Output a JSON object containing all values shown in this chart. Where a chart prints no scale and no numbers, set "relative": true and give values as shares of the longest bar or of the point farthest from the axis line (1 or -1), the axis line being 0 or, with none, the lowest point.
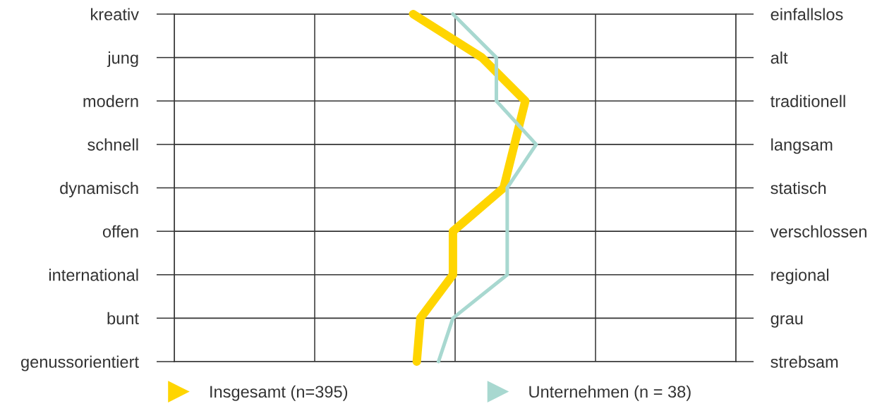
{
  "chart_data": {
    "type": "line",
    "orientation": "horizontal",
    "relative": true,
    "categories": [
      "kreativ",
      "jung",
      "modern",
      "schnell",
      "dynamisch",
      "offen",
      "international",
      "bunt",
      "genussorientiert"
    ],
    "y2_categories": [
      "einfallslos",
      "alt",
      "traditionell",
      "langsam",
      "statisch",
      "verschlossen",
      "regional",
      "grau",
      "strebsam"
    ],
    "series": [
      {
        "name": "Insgesamt (n=395)",
        "color": "#ffd500",
        "values": [
          0.66,
          0.85,
          0.97,
          0.94,
          0.91,
          0.77,
          0.77,
          0.68,
          0.67
        ]
      },
      {
        "name": "Unternehmen (n = 38)",
        "color": "#a8d8d0",
        "values": [
          0.77,
          0.89,
          0.89,
          1.0,
          0.92,
          0.92,
          0.92,
          0.77,
          0.73
        ]
      }
    ],
    "grid": true,
    "legend": "bottom",
    "tick_labels": "y"
  }
}
